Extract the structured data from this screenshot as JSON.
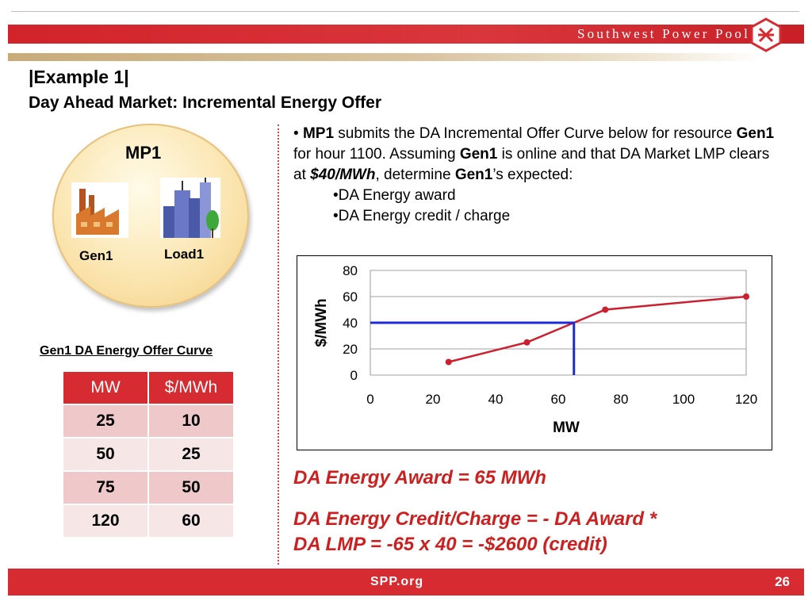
{
  "header": {
    "brand": "Southwest Power Pool",
    "title": "|Example 1|",
    "subtitle": "Day Ahead Market: Incremental Energy Offer"
  },
  "diagram": {
    "participant": "MP1",
    "gen_label": "Gen1",
    "load_label": "Load1"
  },
  "offer_table": {
    "title": "Gen1 DA Energy Offer Curve",
    "headers": [
      "MW",
      "$/MWh"
    ],
    "rows": [
      [
        "25",
        "10"
      ],
      [
        "50",
        "25"
      ],
      [
        "75",
        "50"
      ],
      [
        "120",
        "60"
      ]
    ]
  },
  "description": {
    "b1": "MP1",
    "t1": " submits the DA Incremental Offer Curve below for resource ",
    "b2": "Gen1",
    "t2": " for hour 1100. Assuming ",
    "b3": "Gen1",
    "t3": " is online and that DA Market LMP clears at ",
    "bi": "$40/MWh",
    "t4": ", determine ",
    "b4": "Gen1",
    "t5": "’s expected:",
    "sub1": "•DA Energy award",
    "sub2": "•DA Energy credit / charge"
  },
  "chart_data": {
    "type": "line",
    "xlabel": "MW",
    "ylabel": "$/MWh",
    "xlim": [
      0,
      120
    ],
    "ylim": [
      0,
      80
    ],
    "x_ticks": [
      0,
      20,
      40,
      60,
      80,
      100,
      120
    ],
    "y_ticks": [
      0,
      20,
      40,
      60,
      80
    ],
    "grid": "horizontal",
    "series": [
      {
        "x": [
          25,
          50,
          65,
          75,
          120
        ],
        "y": [
          10,
          25,
          40,
          50,
          60
        ],
        "color": "#cc2030",
        "markers": [
          25,
          50,
          75,
          120
        ]
      },
      {
        "x": [
          0,
          65,
          65
        ],
        "y": [
          40,
          40,
          0
        ],
        "color": "#1d2bd6"
      }
    ]
  },
  "answers": {
    "award": "DA Energy Award = 65 MWh",
    "credit_line1": "DA Energy Credit/Charge =  - DA Award *",
    "credit_line2": "DA LMP =  -65 x 40 = -$2600 (credit)"
  },
  "footer": {
    "url": "SPP.org",
    "page": "26"
  },
  "colors": {
    "accent_red": "#d52b31",
    "tan": "#c9ab78",
    "curve": "#cc2030",
    "clearing_line": "#1d2bd6"
  }
}
